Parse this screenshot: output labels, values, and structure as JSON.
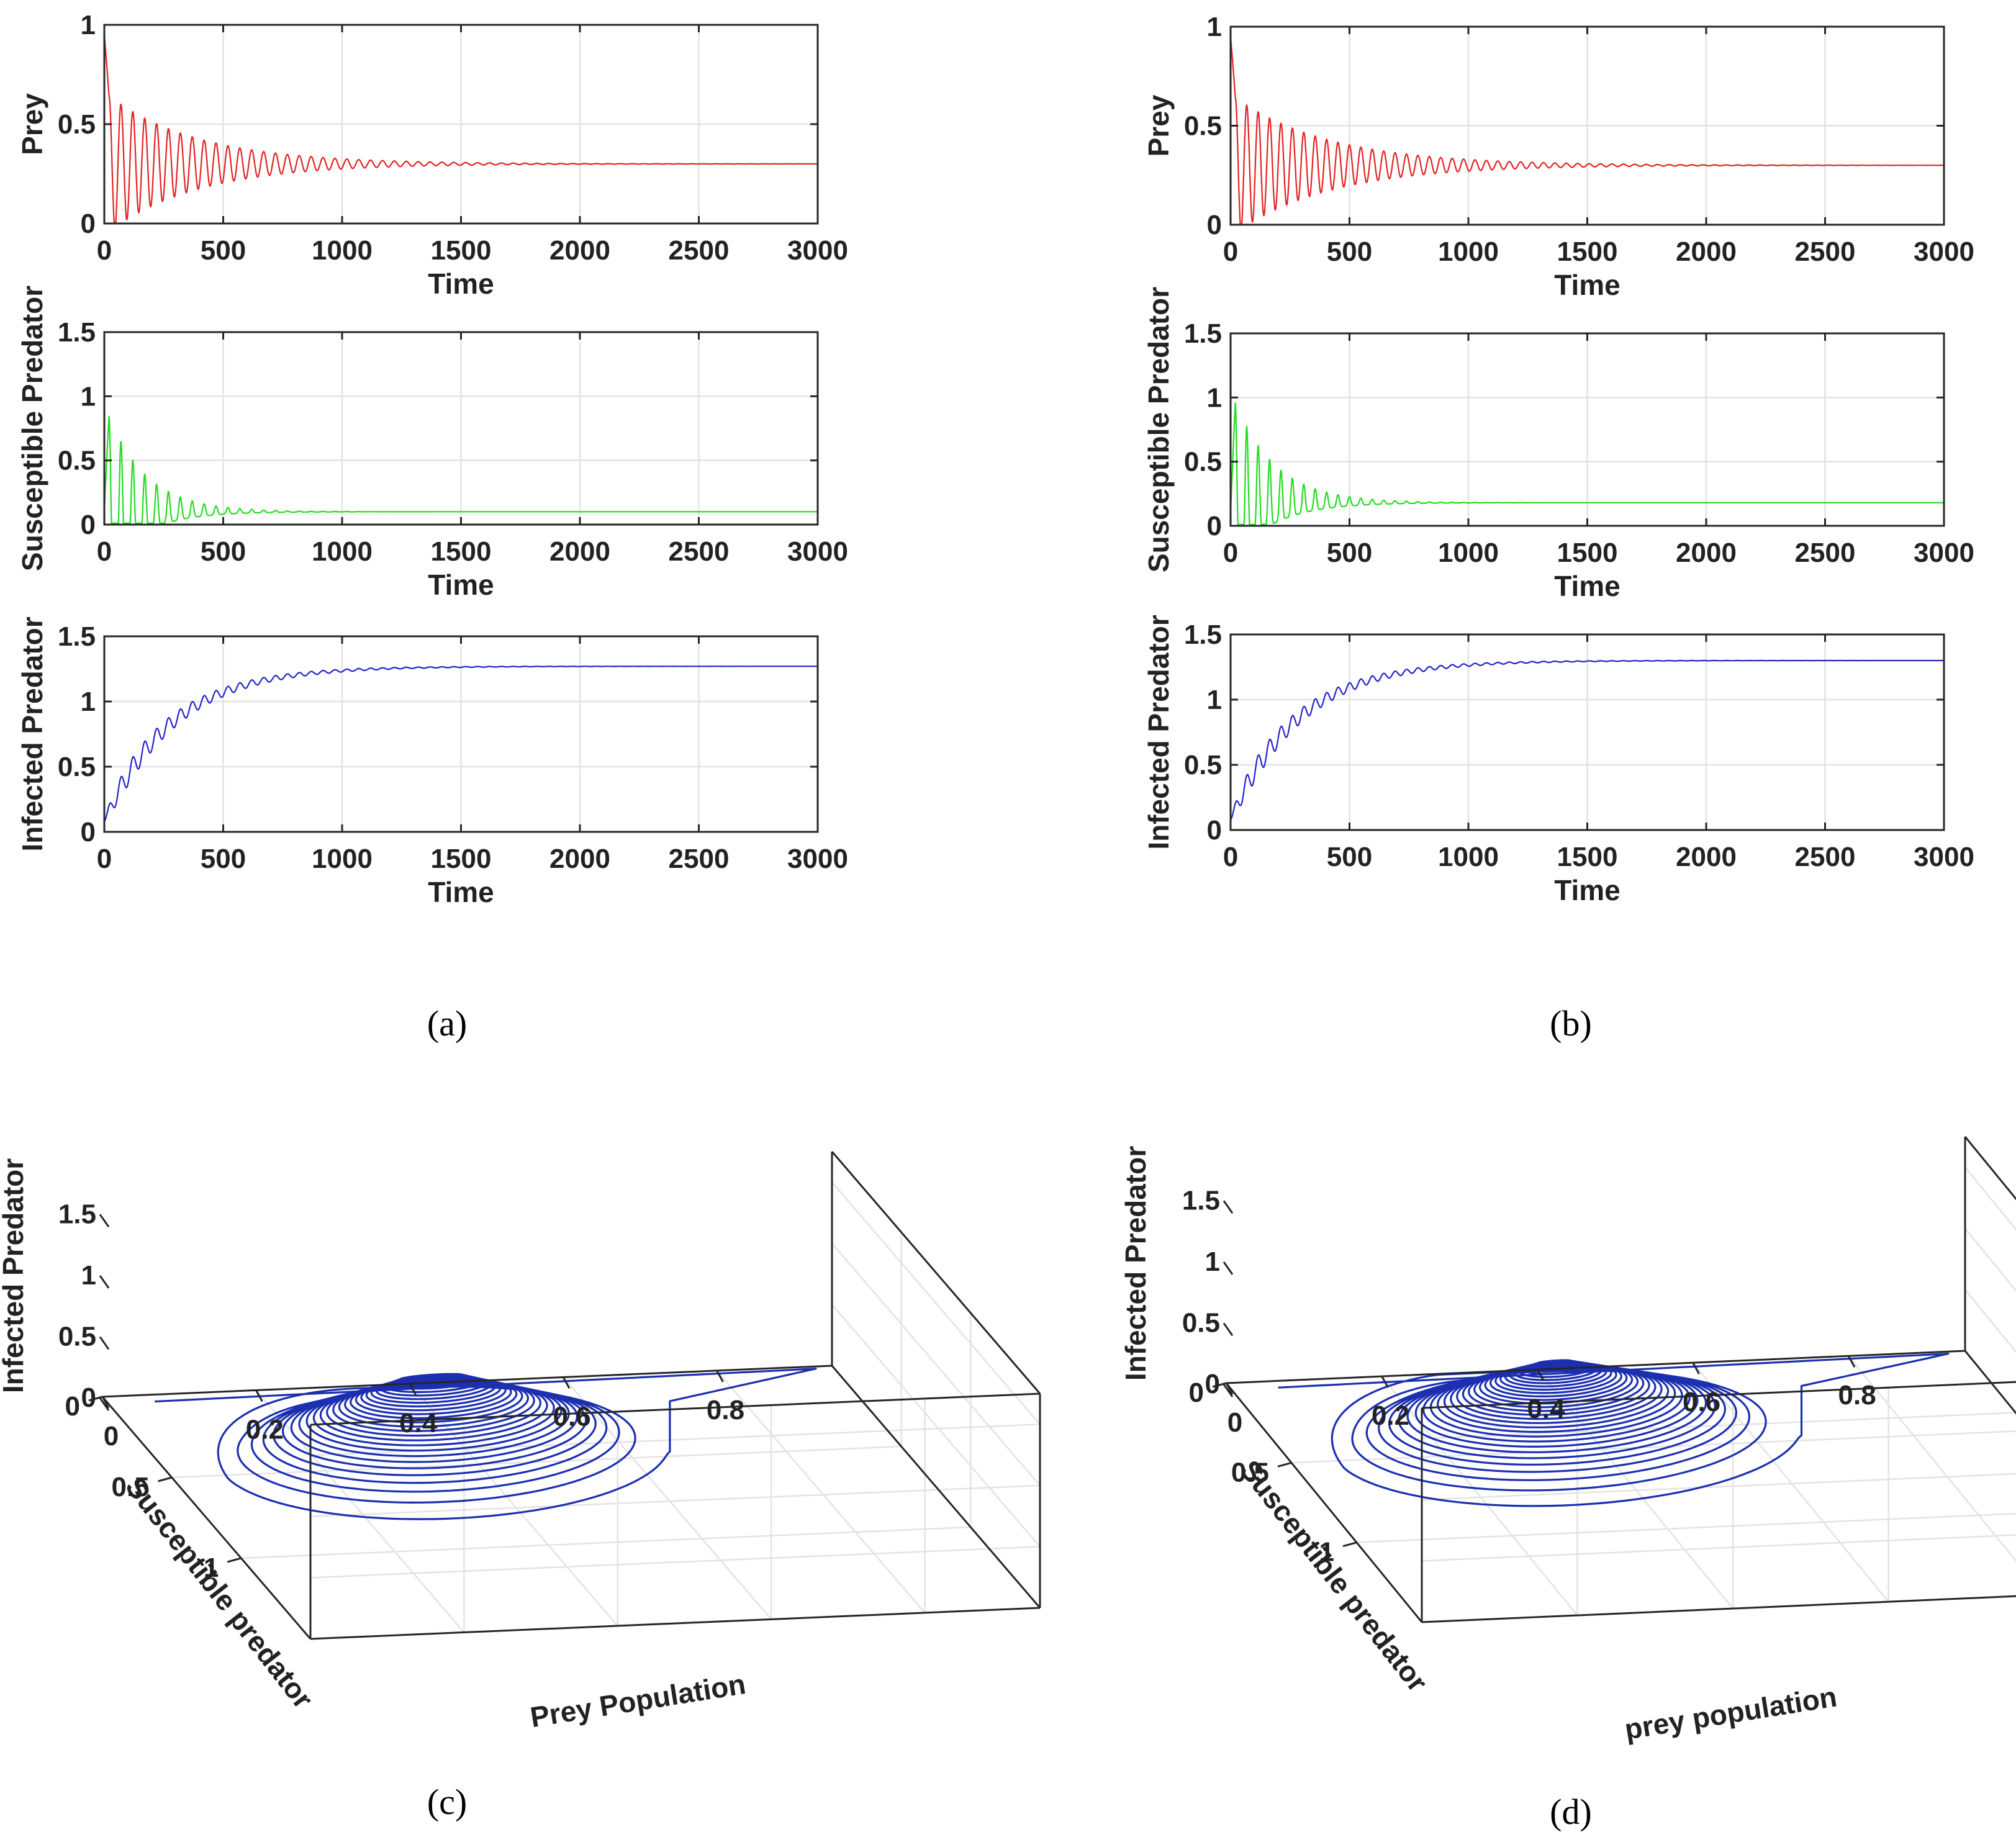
{
  "figure": {
    "panel_labels": [
      "(a)",
      "(b)",
      "(c)",
      "(d)"
    ]
  },
  "colors": {
    "prey": "#e32222",
    "susceptible": "#22dd22",
    "infected": "#2222cc",
    "phase": "#1c2fb0",
    "axis": "#262626",
    "grid": "#e3e3e3"
  },
  "chart_data": [
    {
      "id": "a-prey",
      "panel": "a",
      "type": "line",
      "xlabel": "Time",
      "ylabel": "Prey",
      "xlim": [
        0,
        3000
      ],
      "ylim": [
        0,
        1
      ],
      "xticks": [
        0,
        500,
        1000,
        1500,
        2000,
        2500,
        3000
      ],
      "xtick_labels": [
        "0",
        "500",
        "1000",
        "1500",
        "2000",
        "2500",
        "3000"
      ],
      "yticks": [
        0,
        0.5,
        1
      ],
      "ytick_labels": [
        "0",
        "0.5",
        "1"
      ],
      "series": [
        {
          "name": "Prey",
          "color": "#e32222",
          "model": {
            "kind": "damped",
            "start": 0.95,
            "eq": 0.3,
            "amp0": 0.36,
            "decay": 380,
            "period": 50,
            "phase": 20,
            "lo_frac": 1
          }
        }
      ]
    },
    {
      "id": "a-susc",
      "panel": "a",
      "type": "line",
      "xlabel": "Time",
      "ylabel": "Susceptible Predator",
      "xlim": [
        0,
        3000
      ],
      "ylim": [
        0,
        1.5
      ],
      "xticks": [
        0,
        500,
        1000,
        1500,
        2000,
        2500,
        3000
      ],
      "xtick_labels": [
        "0",
        "500",
        "1000",
        "1500",
        "2000",
        "2500",
        "3000"
      ],
      "yticks": [
        0,
        0.5,
        1,
        1.5
      ],
      "ytick_labels": [
        "0",
        "0.5",
        "1",
        "1.5"
      ],
      "series": [
        {
          "name": "Susceptible Predator",
          "color": "#22dd22",
          "model": {
            "kind": "spiky",
            "start": 0.1,
            "eq": 0.1,
            "amp0": 1.3,
            "decay": 160,
            "period": 50,
            "phase": 20,
            "trough_frac": 0.35,
            "tail": 0.01
          }
        }
      ]
    },
    {
      "id": "a-inf",
      "panel": "a",
      "type": "line",
      "xlabel": "Time",
      "ylabel": "Infected Predator",
      "xlim": [
        0,
        3000
      ],
      "ylim": [
        0,
        1.5
      ],
      "xticks": [
        0,
        500,
        1000,
        1500,
        2000,
        2500,
        3000
      ],
      "xtick_labels": [
        "0",
        "500",
        "1000",
        "1500",
        "2000",
        "2500",
        "3000"
      ],
      "yticks": [
        0,
        0.5,
        1,
        1.5
      ],
      "ytick_labels": [
        "0",
        "0.5",
        "1",
        "1.5"
      ],
      "series": [
        {
          "name": "Infected Predator",
          "color": "#2222cc",
          "model": {
            "kind": "rising",
            "start": 0.08,
            "eq": 1.27,
            "rise": 280,
            "amp0": 0.11,
            "decay": 420,
            "period": 50,
            "phase": 20
          }
        }
      ]
    },
    {
      "id": "b-prey",
      "panel": "b",
      "type": "line",
      "xlabel": "Time",
      "ylabel": "Prey",
      "xlim": [
        0,
        3000
      ],
      "ylim": [
        0,
        1
      ],
      "xticks": [
        0,
        500,
        1000,
        1500,
        2000,
        2500,
        3000
      ],
      "xtick_labels": [
        "0",
        "500",
        "1000",
        "1500",
        "2000",
        "2500",
        "3000"
      ],
      "yticks": [
        0,
        0.5,
        1
      ],
      "ytick_labels": [
        "0",
        "0.5",
        "1"
      ],
      "series": [
        {
          "name": "Prey",
          "color": "#e32222",
          "model": {
            "kind": "damped",
            "start": 0.95,
            "eq": 0.3,
            "amp0": 0.36,
            "decay": 400,
            "period": 48,
            "phase": 20,
            "lo_frac": 1
          }
        }
      ]
    },
    {
      "id": "b-susc",
      "panel": "b",
      "type": "line",
      "xlabel": "Time",
      "ylabel": "Susceptible Predator",
      "xlim": [
        0,
        3000
      ],
      "ylim": [
        0,
        1.5
      ],
      "xticks": [
        0,
        500,
        1000,
        1500,
        2000,
        2500,
        3000
      ],
      "xtick_labels": [
        "0",
        "500",
        "1000",
        "1500",
        "2000",
        "2500",
        "3000"
      ],
      "yticks": [
        0,
        0.5,
        1,
        1.5
      ],
      "ytick_labels": [
        "0",
        "0.5",
        "1",
        "1.5"
      ],
      "series": [
        {
          "name": "Susceptible Predator",
          "color": "#22dd22",
          "model": {
            "kind": "spiky",
            "start": 0.1,
            "eq": 0.18,
            "amp0": 1.35,
            "decay": 170,
            "period": 48,
            "phase": 20,
            "trough_frac": 0.35,
            "tail": 0.01
          }
        }
      ]
    },
    {
      "id": "b-inf",
      "panel": "b",
      "type": "line",
      "xlabel": "Time",
      "ylabel": "Infected Predator",
      "xlim": [
        0,
        3000
      ],
      "ylim": [
        0,
        1.5
      ],
      "xticks": [
        0,
        500,
        1000,
        1500,
        2000,
        2500,
        3000
      ],
      "xtick_labels": [
        "0",
        "500",
        "1000",
        "1500",
        "2000",
        "2500",
        "3000"
      ],
      "yticks": [
        0,
        0.5,
        1,
        1.5
      ],
      "ytick_labels": [
        "0",
        "0.5",
        "1",
        "1.5"
      ],
      "series": [
        {
          "name": "Infected Predator",
          "color": "#2222cc",
          "model": {
            "kind": "rising",
            "start": 0.08,
            "eq": 1.3,
            "rise": 280,
            "amp0": 0.11,
            "decay": 420,
            "period": 48,
            "phase": 20
          }
        }
      ]
    },
    {
      "id": "c-phase",
      "panel": "c",
      "type": "line3d",
      "xlabel": "Prey Population",
      "ylabel": "Susceptible predator",
      "zlabel": "Infected Predator",
      "xlim": [
        0,
        0.95
      ],
      "ylim": [
        0,
        1.5
      ],
      "zlim": [
        0,
        1.75
      ],
      "xticks": [
        0,
        0.2,
        0.4,
        0.6,
        0.8
      ],
      "xtick_labels": [
        "0",
        "0.2",
        "0.4",
        "0.6",
        "0.8"
      ],
      "yticks": [
        0,
        0.5,
        1
      ],
      "ytick_labels": [
        "0",
        "0.5",
        "1"
      ],
      "zticks": [
        0,
        0.5,
        1,
        1.5
      ],
      "ztick_labels": [
        "0",
        "0.5",
        "1",
        "1.5"
      ],
      "trajectory": {
        "initial": [
          0.05,
          0.1,
          0.08
        ],
        "corner": [
          0.92,
          0.05,
          0.05
        ],
        "center": [
          0.33,
          0.55,
          0.8
        ],
        "loops": 26,
        "outer_rx": 0.29,
        "outer_ry": 0.6,
        "inner_rx": 0.04,
        "inner_ry": 0.02,
        "color": "#1c2fb0"
      }
    },
    {
      "id": "d-phase",
      "panel": "d",
      "type": "line3d",
      "xlabel": "prey population",
      "ylabel": "Susceptible predator",
      "zlabel": "Infected Predator",
      "xlim": [
        0,
        0.95
      ],
      "ylim": [
        0,
        1.5
      ],
      "zlim": [
        0,
        1.75
      ],
      "xticks": [
        0,
        0.2,
        0.4,
        0.6,
        0.8
      ],
      "xtick_labels": [
        "0",
        "0.2",
        "0.4",
        "0.6",
        "0.8"
      ],
      "yticks": [
        0,
        0.5,
        1
      ],
      "ytick_labels": [
        "0",
        "0.5",
        "1"
      ],
      "zticks": [
        0,
        0.5,
        1,
        1.5
      ],
      "ztick_labels": [
        "0",
        "0.5",
        "1",
        "1.5"
      ],
      "trajectory": {
        "initial": [
          0.05,
          0.1,
          0.08
        ],
        "corner": [
          0.92,
          0.05,
          0.05
        ],
        "center": [
          0.33,
          0.55,
          0.8
        ],
        "loops": 30,
        "outer_rx": 0.3,
        "outer_ry": 0.62,
        "inner_rx": 0.02,
        "inner_ry": 0.01,
        "color": "#1c2fb0"
      }
    }
  ]
}
